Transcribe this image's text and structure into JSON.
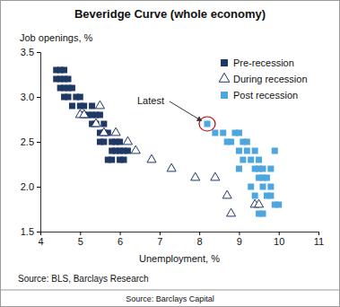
{
  "chart_data": {
    "type": "scatter",
    "title": "Beveridge Curve (whole economy)",
    "y_label": "Job openings, %",
    "x_label": "Unemployment, %",
    "xlim": [
      4,
      11
    ],
    "xticks": [
      4,
      5,
      6,
      7,
      8,
      9,
      10,
      11
    ],
    "ylim": [
      1.5,
      3.5
    ],
    "yticks": [
      1.5,
      {
        "value": 2,
        "label": "2.0"
      },
      2.5,
      {
        "value": 3,
        "label": "3.0"
      },
      3.5
    ],
    "grid": false,
    "legend": "top-right",
    "series": [
      {
        "name": "Pre-recession",
        "color": "#1f3864",
        "marker": "square",
        "x": [
          4.4,
          4.5,
          4.6,
          4.4,
          4.5,
          4.6,
          4.7,
          4.5,
          4.6,
          4.7,
          4.8,
          4.6,
          4.7,
          4.9,
          5.0,
          4.8,
          5.0,
          5.1,
          5.2,
          5.3,
          5.4,
          5.5,
          5.3,
          5.4,
          5.6,
          5.5,
          5.6,
          5.7,
          5.5,
          5.6,
          5.8,
          5.9,
          5.8,
          5.9,
          6.0,
          6.1,
          6.2,
          5.7,
          5.8,
          6.0,
          6.1,
          6.0,
          5.3,
          5.1
        ],
        "values": [
          3.3,
          3.3,
          3.3,
          3.2,
          3.2,
          3.2,
          3.2,
          3.1,
          3.1,
          3.1,
          3.1,
          3.0,
          3.0,
          3.0,
          3.0,
          2.9,
          2.9,
          2.9,
          2.8,
          2.8,
          2.8,
          2.8,
          2.7,
          2.7,
          2.7,
          2.6,
          2.6,
          2.6,
          2.5,
          2.5,
          2.5,
          2.5,
          2.4,
          2.4,
          2.4,
          2.4,
          2.4,
          2.3,
          2.3,
          2.3,
          2.3,
          2.5,
          2.9,
          2.8
        ]
      },
      {
        "name": "During recession",
        "color": "#1f3864",
        "marker": "triangle-open",
        "x": [
          5.0,
          5.1,
          5.4,
          5.6,
          5.9,
          6.2,
          6.4,
          6.8,
          7.3,
          7.9,
          8.4,
          8.7,
          8.8,
          9.4,
          9.5,
          5.5
        ],
        "values": [
          2.8,
          2.8,
          2.7,
          2.6,
          2.6,
          2.5,
          2.4,
          2.3,
          2.2,
          2.1,
          2.1,
          1.9,
          1.7,
          1.8,
          1.8,
          2.9
        ]
      },
      {
        "name": "Post recession",
        "color": "#4da6de",
        "marker": "square",
        "x": [
          8.2,
          8.4,
          8.6,
          8.9,
          8.7,
          8.8,
          9.0,
          9.1,
          9.2,
          9.0,
          9.2,
          9.4,
          9.1,
          9.3,
          9.5,
          9.9,
          9.4,
          9.5,
          9.6,
          9.8,
          9.5,
          9.6,
          9.7,
          9.8,
          9.6,
          9.4,
          9.7,
          9.9,
          10.0,
          9.5,
          9.6,
          9.8,
          9.0,
          9.3
        ],
        "values": [
          2.7,
          2.6,
          2.6,
          2.6,
          2.5,
          2.5,
          2.6,
          2.5,
          2.5,
          2.4,
          2.4,
          2.4,
          2.3,
          2.3,
          2.3,
          2.4,
          2.2,
          2.2,
          2.2,
          2.2,
          2.1,
          2.1,
          2.1,
          2.0,
          2.0,
          1.9,
          1.9,
          1.8,
          1.8,
          1.7,
          1.7,
          1.9,
          2.2,
          2.0
        ]
      }
    ],
    "annotations": [
      {
        "text": "Latest",
        "x": 8.2,
        "y": 2.7
      }
    ],
    "notes": [
      "Source: BLS, Barclays Research",
      "Source: Barclays Capital"
    ]
  }
}
